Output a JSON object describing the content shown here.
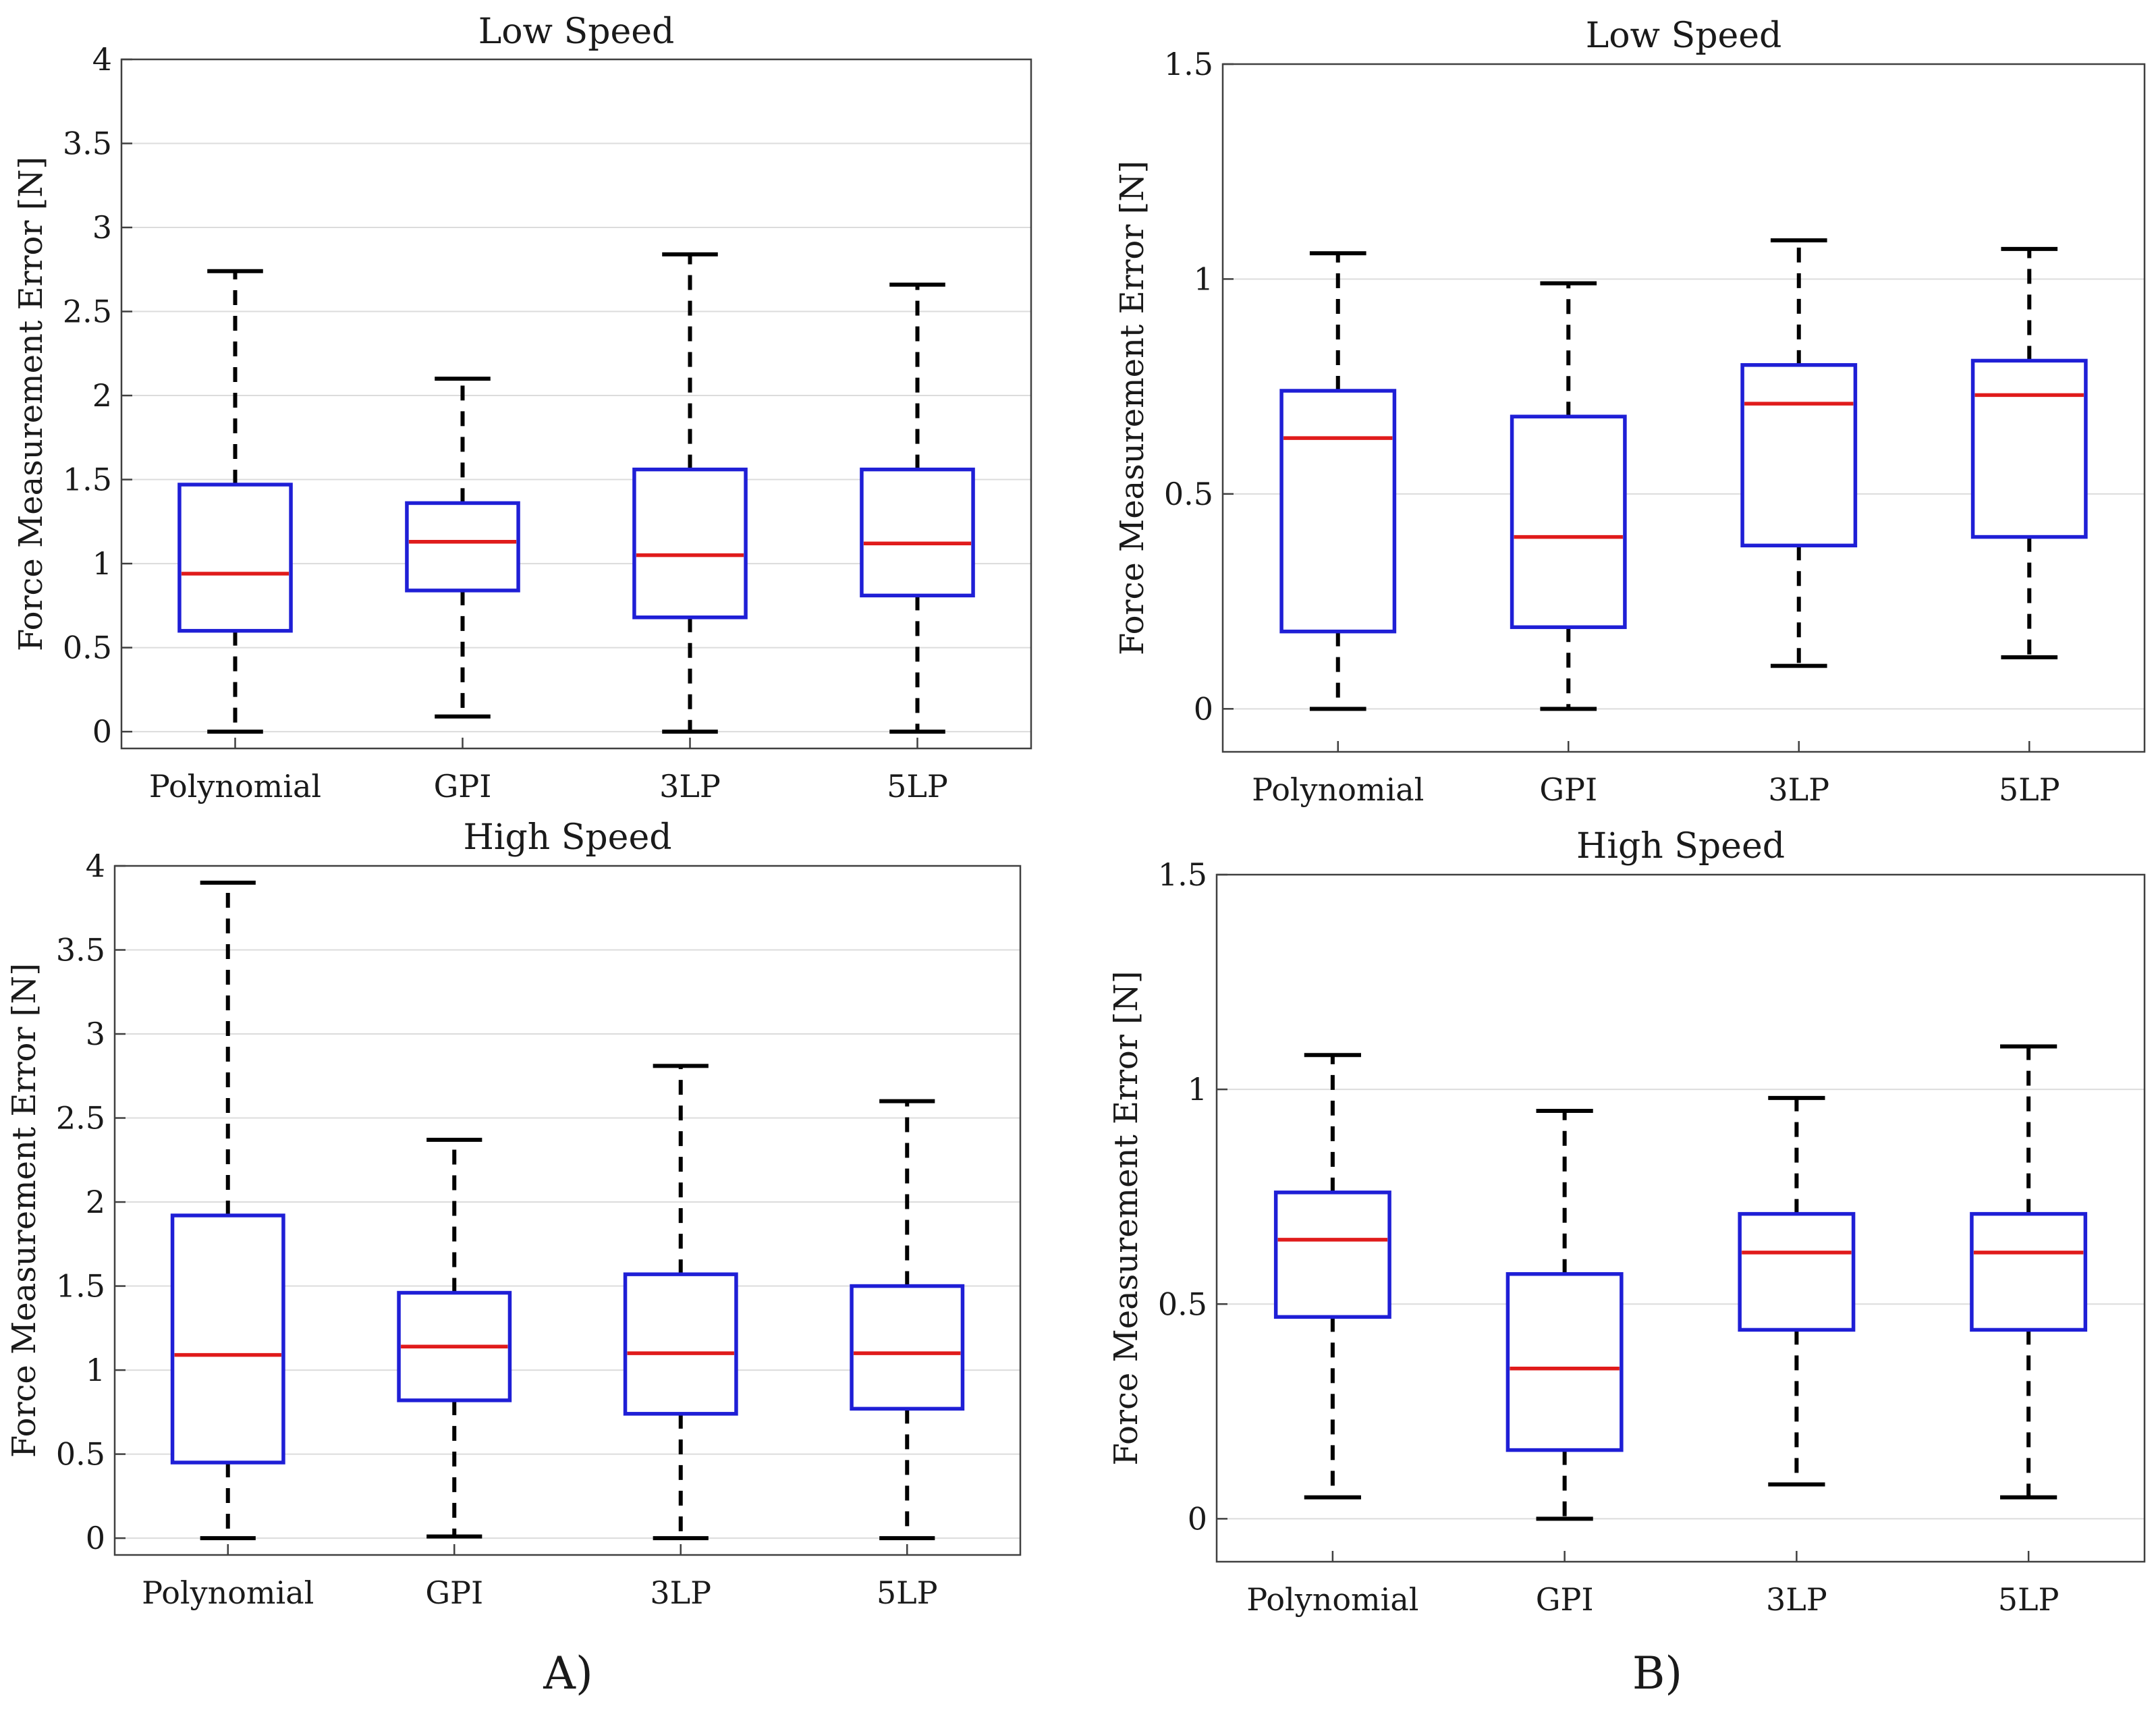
{
  "chart_data": [
    {
      "type": "box",
      "title": "Low Speed",
      "ylabel": "Force Measurement Error [N]",
      "xlabel": "",
      "ylim": [
        -0.1,
        4.0
      ],
      "yticks": [
        0,
        0.5,
        1,
        1.5,
        2,
        2.5,
        3,
        3.5,
        4
      ],
      "ytick_labels": [
        "0",
        "0.5",
        "1",
        "1.5",
        "2",
        "2.5",
        "3",
        "3.5",
        "4"
      ],
      "grid": true,
      "categories": [
        "Polynomial",
        "GPI",
        "3LP",
        "5LP"
      ],
      "boxes": [
        {
          "whisker_low": 0.0,
          "q1": 0.6,
          "median": 0.94,
          "q3": 1.47,
          "whisker_high": 2.74
        },
        {
          "whisker_low": 0.09,
          "q1": 0.84,
          "median": 1.13,
          "q3": 1.36,
          "whisker_high": 2.1
        },
        {
          "whisker_low": 0.0,
          "q1": 0.68,
          "median": 1.05,
          "q3": 1.56,
          "whisker_high": 2.84
        },
        {
          "whisker_low": 0.0,
          "q1": 0.81,
          "median": 1.12,
          "q3": 1.56,
          "whisker_high": 2.66
        }
      ]
    },
    {
      "type": "box",
      "title": "Low Speed",
      "ylabel": "Force Measurement Error [N]",
      "xlabel": "",
      "ylim": [
        -0.1,
        1.5
      ],
      "yticks": [
        0,
        0.5,
        1,
        1.5
      ],
      "ytick_labels": [
        "0",
        "0.5",
        "1",
        "1.5"
      ],
      "grid": true,
      "categories": [
        "Polynomial",
        "GPI",
        "3LP",
        "5LP"
      ],
      "boxes": [
        {
          "whisker_low": 0.0,
          "q1": 0.18,
          "median": 0.63,
          "q3": 0.74,
          "whisker_high": 1.06
        },
        {
          "whisker_low": 0.0,
          "q1": 0.19,
          "median": 0.4,
          "q3": 0.68,
          "whisker_high": 0.99
        },
        {
          "whisker_low": 0.1,
          "q1": 0.38,
          "median": 0.71,
          "q3": 0.8,
          "whisker_high": 1.09
        },
        {
          "whisker_low": 0.12,
          "q1": 0.4,
          "median": 0.73,
          "q3": 0.81,
          "whisker_high": 1.07
        }
      ]
    },
    {
      "type": "box",
      "title": "High Speed",
      "ylabel": "Force Measurement Error [N]",
      "xlabel": "",
      "ylim": [
        -0.1,
        4.0
      ],
      "yticks": [
        0,
        0.5,
        1,
        1.5,
        2,
        2.5,
        3,
        3.5,
        4
      ],
      "ytick_labels": [
        "0",
        "0.5",
        "1",
        "1.5",
        "2",
        "2.5",
        "3",
        "3.5",
        "4"
      ],
      "grid": true,
      "categories": [
        "Polynomial",
        "GPI",
        "3LP",
        "5LP"
      ],
      "boxes": [
        {
          "whisker_low": 0.0,
          "q1": 0.45,
          "median": 1.09,
          "q3": 1.92,
          "whisker_high": 3.9
        },
        {
          "whisker_low": 0.01,
          "q1": 0.82,
          "median": 1.14,
          "q3": 1.46,
          "whisker_high": 2.37
        },
        {
          "whisker_low": 0.0,
          "q1": 0.74,
          "median": 1.1,
          "q3": 1.57,
          "whisker_high": 2.81
        },
        {
          "whisker_low": 0.0,
          "q1": 0.77,
          "median": 1.1,
          "q3": 1.5,
          "whisker_high": 2.6
        }
      ]
    },
    {
      "type": "box",
      "title": "High Speed",
      "ylabel": "Force Measurement Error [N]",
      "xlabel": "",
      "ylim": [
        -0.1,
        1.5
      ],
      "yticks": [
        0,
        0.5,
        1,
        1.5
      ],
      "ytick_labels": [
        "0",
        "0.5",
        "1",
        "1.5"
      ],
      "grid": true,
      "categories": [
        "Polynomial",
        "GPI",
        "3LP",
        "5LP"
      ],
      "boxes": [
        {
          "whisker_low": 0.05,
          "q1": 0.47,
          "median": 0.65,
          "q3": 0.76,
          "whisker_high": 1.08
        },
        {
          "whisker_low": 0.0,
          "q1": 0.16,
          "median": 0.35,
          "q3": 0.57,
          "whisker_high": 0.95
        },
        {
          "whisker_low": 0.08,
          "q1": 0.44,
          "median": 0.62,
          "q3": 0.71,
          "whisker_high": 0.98
        },
        {
          "whisker_low": 0.05,
          "q1": 0.44,
          "median": 0.62,
          "q3": 0.71,
          "whisker_high": 1.1
        }
      ]
    }
  ],
  "panel_labels": [
    "A)",
    "B)"
  ],
  "colors": {
    "box": "#1f1fd6",
    "median": "#e01b1b",
    "whisker": "#000000",
    "grid": "#dcdcdc",
    "axis": "#404040"
  }
}
